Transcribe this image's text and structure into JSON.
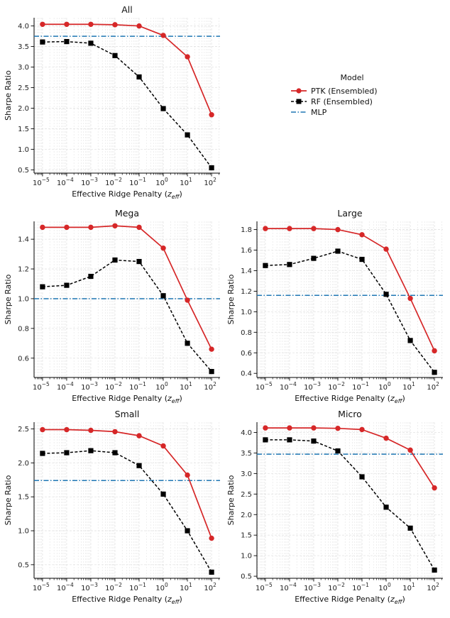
{
  "chart_data": [
    {
      "type": "line",
      "title": "All",
      "xlabel_prefix": "Effective Ridge Penalty (",
      "xlabel_var": "z",
      "xlabel_sub": "eff",
      "xlabel_suffix": ")",
      "ylabel": "Sharpe Ratio",
      "x": [
        -5,
        -4,
        -3,
        -2,
        -1,
        0,
        1,
        2
      ],
      "x_tick_labels": [
        "10−5",
        "10−4",
        "10−3",
        "10−2",
        "10−1",
        "100",
        "101",
        "102"
      ],
      "x_tick_base": "10",
      "x_tick_exps": [
        "−5",
        "−4",
        "−3",
        "−2",
        "−1",
        "0",
        "1",
        "2"
      ],
      "ylim": [
        0.42,
        4.2
      ],
      "yticks": [
        0.5,
        1.0,
        1.5,
        2.0,
        2.5,
        3.0,
        3.5,
        4.0
      ],
      "ytick_labels": [
        "0.5",
        "1.0",
        "1.5",
        "2.0",
        "2.5",
        "3.0",
        "3.5",
        "4.0"
      ],
      "series": [
        {
          "name": "PTK (Ensembled)",
          "values": [
            4.04,
            4.04,
            4.04,
            4.03,
            4.0,
            3.77,
            3.25,
            1.84
          ]
        },
        {
          "name": "RF (Ensembled)",
          "values": [
            3.61,
            3.62,
            3.58,
            3.28,
            2.76,
            1.99,
            1.35,
            0.55
          ]
        }
      ],
      "mlp": 3.75
    },
    {
      "type": "line",
      "title": "Mega",
      "xlabel_prefix": "Effective Ridge Penalty (",
      "xlabel_var": "z",
      "xlabel_sub": "eff",
      "xlabel_suffix": ")",
      "ylabel": "Sharpe Ratio",
      "x": [
        -5,
        -4,
        -3,
        -2,
        -1,
        0,
        1,
        2
      ],
      "x_tick_base": "10",
      "x_tick_exps": [
        "−5",
        "−4",
        "−3",
        "−2",
        "−1",
        "0",
        "1",
        "2"
      ],
      "ylim": [
        0.47,
        1.52
      ],
      "yticks": [
        0.6,
        0.8,
        1.0,
        1.2,
        1.4
      ],
      "ytick_labels": [
        "0.6",
        "0.8",
        "1.0",
        "1.2",
        "1.4"
      ],
      "series": [
        {
          "name": "PTK (Ensembled)",
          "values": [
            1.48,
            1.48,
            1.48,
            1.49,
            1.48,
            1.34,
            0.99,
            0.66
          ]
        },
        {
          "name": "RF (Ensembled)",
          "values": [
            1.08,
            1.09,
            1.15,
            1.26,
            1.25,
            1.02,
            0.7,
            0.51
          ]
        }
      ],
      "mlp": 1.0
    },
    {
      "type": "line",
      "title": "Large",
      "xlabel_prefix": "Effective Ridge Penalty (",
      "xlabel_var": "z",
      "xlabel_sub": "eff",
      "xlabel_suffix": ")",
      "ylabel": "Sharpe Ratio",
      "x": [
        -5,
        -4,
        -3,
        -2,
        -1,
        0,
        1,
        2
      ],
      "x_tick_base": "10",
      "x_tick_exps": [
        "−5",
        "−4",
        "−3",
        "−2",
        "−1",
        "0",
        "1",
        "2"
      ],
      "ylim": [
        0.36,
        1.88
      ],
      "yticks": [
        0.4,
        0.6,
        0.8,
        1.0,
        1.2,
        1.4,
        1.6,
        1.8
      ],
      "ytick_labels": [
        "0.4",
        "0.6",
        "0.8",
        "1.0",
        "1.2",
        "1.4",
        "1.6",
        "1.8"
      ],
      "series": [
        {
          "name": "PTK (Ensembled)",
          "values": [
            1.81,
            1.81,
            1.81,
            1.8,
            1.75,
            1.61,
            1.13,
            0.62
          ]
        },
        {
          "name": "RF (Ensembled)",
          "values": [
            1.45,
            1.46,
            1.52,
            1.59,
            1.51,
            1.17,
            0.72,
            0.41
          ]
        }
      ],
      "mlp": 1.16
    },
    {
      "type": "line",
      "title": "Small",
      "xlabel_prefix": "Effective Ridge Penalty (",
      "xlabel_var": "z",
      "xlabel_sub": "eff",
      "xlabel_suffix": ")",
      "ylabel": "Sharpe Ratio",
      "x": [
        -5,
        -4,
        -3,
        -2,
        -1,
        0,
        1,
        2
      ],
      "x_tick_base": "10",
      "x_tick_exps": [
        "−5",
        "−4",
        "−3",
        "−2",
        "−1",
        "0",
        "1",
        "2"
      ],
      "ylim": [
        0.3,
        2.6
      ],
      "yticks": [
        0.5,
        1.0,
        1.5,
        2.0,
        2.5
      ],
      "ytick_labels": [
        "0.5",
        "1.0",
        "1.5",
        "2.0",
        "2.5"
      ],
      "series": [
        {
          "name": "PTK (Ensembled)",
          "values": [
            2.49,
            2.49,
            2.48,
            2.46,
            2.4,
            2.25,
            1.82,
            0.89
          ]
        },
        {
          "name": "RF (Ensembled)",
          "values": [
            2.14,
            2.15,
            2.18,
            2.15,
            1.96,
            1.54,
            1.0,
            0.39
          ]
        }
      ],
      "mlp": 1.74
    },
    {
      "type": "line",
      "title": "Micro",
      "xlabel_prefix": "Effective Ridge Penalty (",
      "xlabel_var": "z",
      "xlabel_sub": "eff",
      "xlabel_suffix": ")",
      "ylabel": "Sharpe Ratio",
      "x": [
        -5,
        -4,
        -3,
        -2,
        -1,
        0,
        1,
        2
      ],
      "x_tick_base": "10",
      "x_tick_exps": [
        "−5",
        "−4",
        "−3",
        "−2",
        "−1",
        "0",
        "1",
        "2"
      ],
      "ylim": [
        0.45,
        4.25
      ],
      "yticks": [
        0.5,
        1.0,
        1.5,
        2.0,
        2.5,
        3.0,
        3.5,
        4.0
      ],
      "ytick_labels": [
        "0.5",
        "1.0",
        "1.5",
        "2.0",
        "2.5",
        "3.0",
        "3.5",
        "4.0"
      ],
      "series": [
        {
          "name": "PTK (Ensembled)",
          "values": [
            4.11,
            4.11,
            4.11,
            4.1,
            4.07,
            3.86,
            3.57,
            2.65
          ]
        },
        {
          "name": "RF (Ensembled)",
          "values": [
            3.82,
            3.82,
            3.79,
            3.55,
            2.92,
            2.18,
            1.67,
            0.65
          ]
        }
      ],
      "mlp": 3.47
    }
  ],
  "legend": {
    "title": "Model",
    "entries": [
      "PTK (Ensembled)",
      "RF (Ensembled)",
      "MLP"
    ]
  },
  "colors": {
    "ptk": "#d62728",
    "rf": "#000000",
    "mlp": "#1f77b4",
    "grid": "#e3e3e3",
    "axis": "#000000"
  }
}
